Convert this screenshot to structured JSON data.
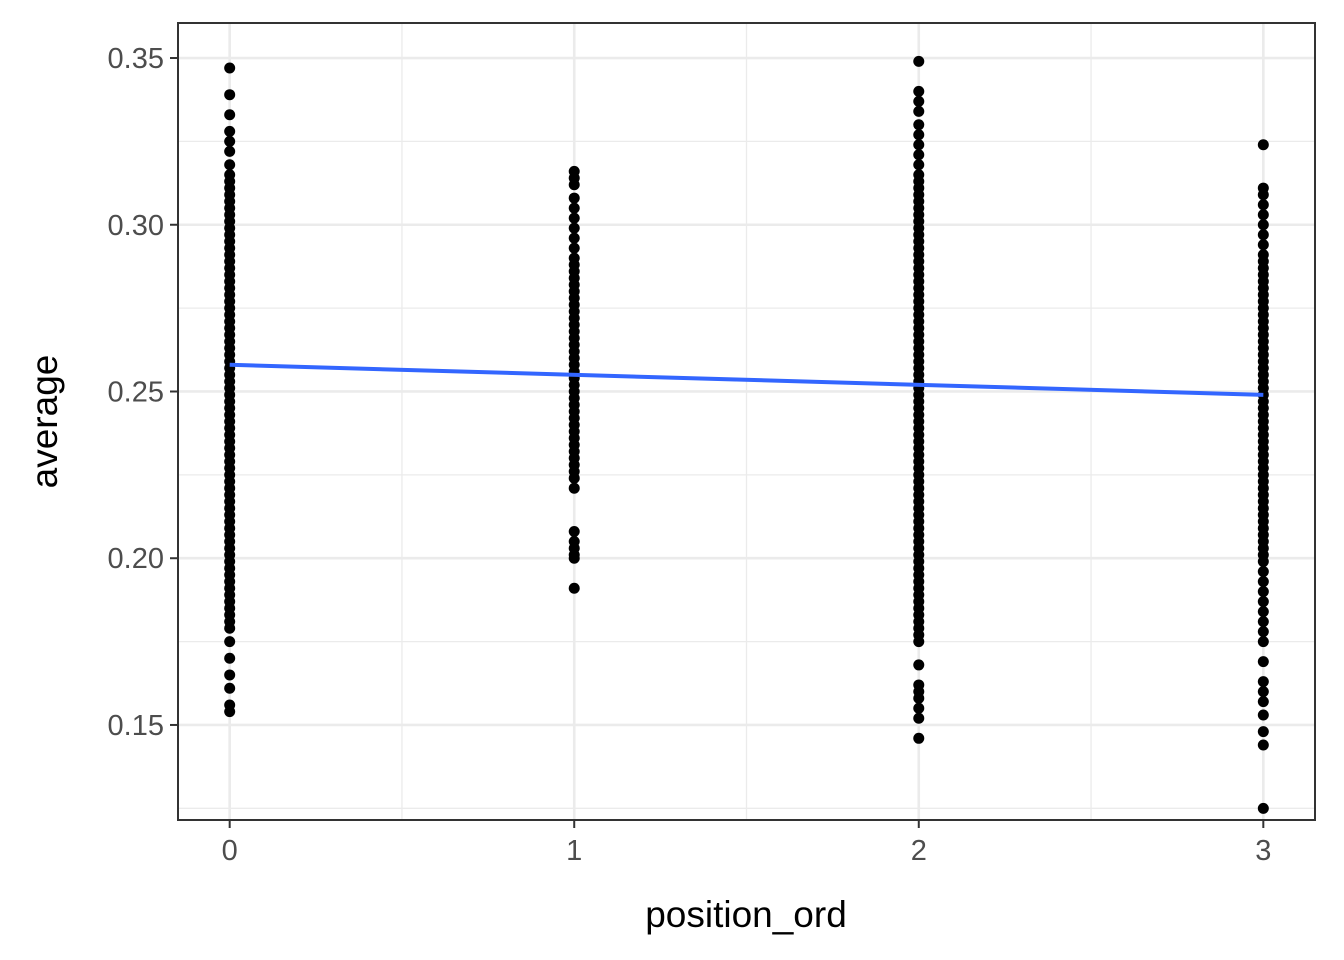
{
  "chart_data": {
    "type": "scatter",
    "title": "",
    "xlabel": "position_ord",
    "ylabel": "average",
    "xlim": [
      -0.15,
      3.15
    ],
    "ylim": [
      0.1215,
      0.3605
    ],
    "x_ticks": [
      0,
      1,
      2,
      3
    ],
    "x_tick_labels": [
      "0",
      "1",
      "2",
      "3"
    ],
    "y_ticks": [
      0.15,
      0.2,
      0.25,
      0.3,
      0.35
    ],
    "y_tick_labels": [
      "0.15",
      "0.20",
      "0.25",
      "0.30",
      "0.35"
    ],
    "grid": true,
    "legend": "none",
    "point_color": "#000000",
    "fit_line": {
      "color": "#3366ff",
      "x": [
        0,
        3
      ],
      "y": [
        0.258,
        0.249
      ]
    },
    "series": [
      {
        "x": 0,
        "values": [
          0.347,
          0.339,
          0.333,
          0.328,
          0.325,
          0.322,
          0.318,
          0.315,
          0.313,
          0.311,
          0.309,
          0.307,
          0.305,
          0.303,
          0.301,
          0.299,
          0.297,
          0.295,
          0.293,
          0.291,
          0.289,
          0.287,
          0.285,
          0.283,
          0.281,
          0.279,
          0.277,
          0.275,
          0.273,
          0.271,
          0.269,
          0.267,
          0.265,
          0.263,
          0.261,
          0.259,
          0.257,
          0.255,
          0.253,
          0.251,
          0.249,
          0.247,
          0.245,
          0.243,
          0.241,
          0.239,
          0.237,
          0.235,
          0.233,
          0.231,
          0.229,
          0.227,
          0.225,
          0.223,
          0.221,
          0.219,
          0.217,
          0.215,
          0.213,
          0.211,
          0.209,
          0.207,
          0.205,
          0.203,
          0.201,
          0.199,
          0.197,
          0.195,
          0.193,
          0.191,
          0.189,
          0.187,
          0.185,
          0.183,
          0.181,
          0.179,
          0.175,
          0.17,
          0.165,
          0.161,
          0.156,
          0.154
        ]
      },
      {
        "x": 1,
        "values": [
          0.316,
          0.314,
          0.312,
          0.308,
          0.305,
          0.302,
          0.299,
          0.296,
          0.293,
          0.29,
          0.288,
          0.286,
          0.284,
          0.282,
          0.28,
          0.278,
          0.276,
          0.274,
          0.272,
          0.27,
          0.268,
          0.266,
          0.264,
          0.262,
          0.26,
          0.258,
          0.256,
          0.254,
          0.252,
          0.25,
          0.248,
          0.246,
          0.244,
          0.242,
          0.24,
          0.238,
          0.236,
          0.234,
          0.232,
          0.23,
          0.228,
          0.226,
          0.224,
          0.221,
          0.208,
          0.205,
          0.203,
          0.201,
          0.2,
          0.191
        ]
      },
      {
        "x": 2,
        "values": [
          0.349,
          0.34,
          0.337,
          0.334,
          0.33,
          0.327,
          0.324,
          0.321,
          0.318,
          0.315,
          0.313,
          0.311,
          0.309,
          0.307,
          0.305,
          0.303,
          0.301,
          0.299,
          0.297,
          0.295,
          0.293,
          0.291,
          0.289,
          0.287,
          0.285,
          0.283,
          0.281,
          0.279,
          0.277,
          0.275,
          0.273,
          0.271,
          0.269,
          0.267,
          0.265,
          0.263,
          0.261,
          0.259,
          0.257,
          0.255,
          0.253,
          0.251,
          0.249,
          0.247,
          0.245,
          0.243,
          0.241,
          0.239,
          0.237,
          0.235,
          0.233,
          0.231,
          0.229,
          0.227,
          0.225,
          0.223,
          0.221,
          0.219,
          0.217,
          0.215,
          0.213,
          0.211,
          0.209,
          0.207,
          0.205,
          0.203,
          0.201,
          0.199,
          0.197,
          0.195,
          0.193,
          0.191,
          0.189,
          0.187,
          0.185,
          0.183,
          0.181,
          0.179,
          0.177,
          0.175,
          0.168,
          0.162,
          0.16,
          0.158,
          0.155,
          0.152,
          0.146
        ]
      },
      {
        "x": 3,
        "values": [
          0.324,
          0.311,
          0.309,
          0.306,
          0.303,
          0.3,
          0.297,
          0.294,
          0.291,
          0.289,
          0.287,
          0.285,
          0.283,
          0.281,
          0.279,
          0.277,
          0.275,
          0.273,
          0.271,
          0.269,
          0.267,
          0.265,
          0.263,
          0.261,
          0.259,
          0.257,
          0.255,
          0.253,
          0.251,
          0.249,
          0.247,
          0.245,
          0.243,
          0.241,
          0.239,
          0.237,
          0.235,
          0.233,
          0.231,
          0.229,
          0.227,
          0.225,
          0.223,
          0.221,
          0.219,
          0.217,
          0.215,
          0.213,
          0.211,
          0.209,
          0.207,
          0.205,
          0.203,
          0.201,
          0.199,
          0.196,
          0.193,
          0.19,
          0.187,
          0.184,
          0.181,
          0.178,
          0.175,
          0.169,
          0.163,
          0.16,
          0.157,
          0.153,
          0.148,
          0.144,
          0.125
        ]
      }
    ]
  }
}
